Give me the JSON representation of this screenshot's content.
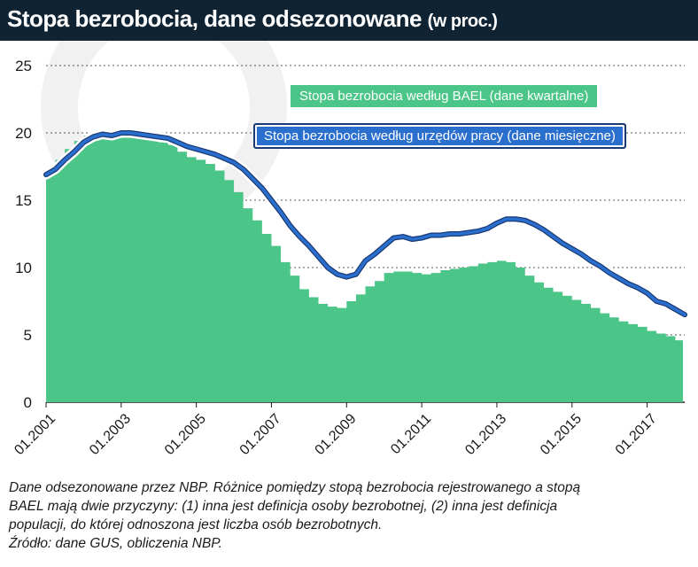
{
  "header": {
    "title": "Stopa bezrobocia, dane odsezonowane",
    "subtitle": "(w proc.)"
  },
  "notes": {
    "line1": "Dane odsezonowane przez NBP. Różnice pomiędzy stopą bezrobocia rejestrowanego a stopą",
    "line2": "BAEL mają dwie przyczyny: (1) inna jest definicja osoby bezrobotnej, (2) inna jest definicja",
    "line3": "populacji, do której odnoszona jest liczba osób bezrobotnych.",
    "line4": "Źródło: dane GUS, obliczenia NBP."
  },
  "colors": {
    "bael_fill": "#4cc588",
    "registered_line": "#2b6fce",
    "registered_outline": "#1a3a75",
    "title_bg": "#0f2333"
  },
  "chart_data": {
    "type": "area",
    "xlabel": "",
    "ylabel": "",
    "ylim": [
      0,
      25
    ],
    "yticks": [
      "0",
      "5",
      "10",
      "15",
      "20",
      "25"
    ],
    "xticks": [
      "01.2001",
      "01.2003",
      "01.2005",
      "01.2007",
      "01.2009",
      "01.2011",
      "01.2013",
      "01.2015",
      "01.2017"
    ],
    "grid": "horizontal dotted",
    "legend": "inline labels, top-center",
    "series": [
      {
        "name": "Stopa bezrobocia według BAEL (dane kwartalne)",
        "kind": "step-area",
        "x": [
          "2001-01",
          "2001-04",
          "2001-07",
          "2001-10",
          "2002-01",
          "2002-04",
          "2002-07",
          "2002-10",
          "2003-01",
          "2003-04",
          "2003-07",
          "2003-10",
          "2004-01",
          "2004-04",
          "2004-07",
          "2004-10",
          "2005-01",
          "2005-04",
          "2005-07",
          "2005-10",
          "2006-01",
          "2006-04",
          "2006-07",
          "2006-10",
          "2007-01",
          "2007-04",
          "2007-07",
          "2007-10",
          "2008-01",
          "2008-04",
          "2008-07",
          "2008-10",
          "2009-01",
          "2009-04",
          "2009-07",
          "2009-10",
          "2010-01",
          "2010-04",
          "2010-07",
          "2010-10",
          "2011-01",
          "2011-04",
          "2011-07",
          "2011-10",
          "2012-01",
          "2012-04",
          "2012-07",
          "2012-10",
          "2013-01",
          "2013-04",
          "2013-07",
          "2013-10",
          "2014-01",
          "2014-04",
          "2014-07",
          "2014-10",
          "2015-01",
          "2015-04",
          "2015-07",
          "2015-10",
          "2016-01",
          "2016-04",
          "2016-07",
          "2016-10",
          "2017-01",
          "2017-04",
          "2017-07",
          "2017-10"
        ],
        "values": [
          17.0,
          18.0,
          18.8,
          19.4,
          19.8,
          20.0,
          20.0,
          20.0,
          19.9,
          19.8,
          19.6,
          19.5,
          19.3,
          19.1,
          18.6,
          18.2,
          18.0,
          17.7,
          17.2,
          16.5,
          15.6,
          14.4,
          13.5,
          12.5,
          11.6,
          10.4,
          9.4,
          8.4,
          7.8,
          7.3,
          7.1,
          7.0,
          7.5,
          8.0,
          8.6,
          9.0,
          9.6,
          9.7,
          9.7,
          9.6,
          9.5,
          9.6,
          9.8,
          9.9,
          10.0,
          10.1,
          10.3,
          10.4,
          10.5,
          10.4,
          10.0,
          9.4,
          8.9,
          8.5,
          8.2,
          7.9,
          7.6,
          7.3,
          7.0,
          6.6,
          6.3,
          6.0,
          5.8,
          5.6,
          5.3,
          5.1,
          4.9,
          4.6
        ]
      },
      {
        "name": "Stopa bezrobocia według urzędów pracy (dane miesięczne)",
        "kind": "line",
        "x": [
          "2001-01",
          "2001-04",
          "2001-07",
          "2001-10",
          "2002-01",
          "2002-04",
          "2002-07",
          "2002-10",
          "2003-01",
          "2003-04",
          "2003-07",
          "2003-10",
          "2004-01",
          "2004-04",
          "2004-07",
          "2004-10",
          "2005-01",
          "2005-04",
          "2005-07",
          "2005-10",
          "2006-01",
          "2006-04",
          "2006-07",
          "2006-10",
          "2007-01",
          "2007-04",
          "2007-07",
          "2007-10",
          "2008-01",
          "2008-04",
          "2008-07",
          "2008-10",
          "2009-01",
          "2009-04",
          "2009-07",
          "2009-10",
          "2010-01",
          "2010-04",
          "2010-07",
          "2010-10",
          "2011-01",
          "2011-04",
          "2011-07",
          "2011-10",
          "2012-01",
          "2012-04",
          "2012-07",
          "2012-10",
          "2013-01",
          "2013-04",
          "2013-07",
          "2013-10",
          "2014-01",
          "2014-04",
          "2014-07",
          "2014-10",
          "2015-01",
          "2015-04",
          "2015-07",
          "2015-10",
          "2016-01",
          "2016-04",
          "2016-07",
          "2016-10",
          "2017-01",
          "2017-04",
          "2017-07",
          "2017-10",
          "2018-01"
        ],
        "values": [
          16.9,
          17.3,
          18.0,
          18.6,
          19.3,
          19.7,
          19.9,
          19.8,
          20.0,
          20.0,
          19.9,
          19.8,
          19.7,
          19.6,
          19.3,
          19.0,
          18.8,
          18.6,
          18.4,
          18.1,
          17.8,
          17.3,
          16.6,
          15.9,
          15.0,
          14.1,
          13.1,
          12.3,
          11.6,
          10.8,
          10.0,
          9.5,
          9.3,
          9.5,
          10.5,
          11.0,
          11.6,
          12.2,
          12.3,
          12.1,
          12.2,
          12.4,
          12.4,
          12.5,
          12.5,
          12.6,
          12.7,
          12.9,
          13.3,
          13.6,
          13.6,
          13.5,
          13.2,
          12.8,
          12.3,
          11.8,
          11.4,
          11.0,
          10.5,
          10.1,
          9.6,
          9.2,
          8.8,
          8.5,
          8.1,
          7.5,
          7.3,
          6.9,
          6.5
        ]
      }
    ]
  }
}
